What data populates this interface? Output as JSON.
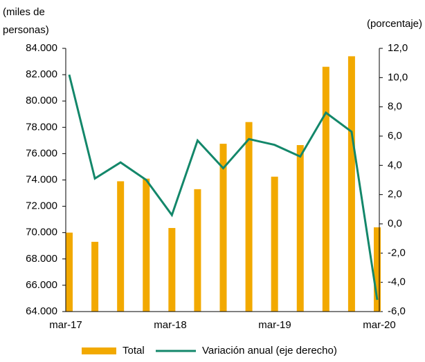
{
  "chart_data": {
    "type": "bar_line",
    "y_label": [
      "(miles de",
      "personas)"
    ],
    "y2_label": "(porcentaje)",
    "categories": [
      "mar-17",
      null,
      null,
      null,
      "mar-18",
      null,
      null,
      null,
      "mar-19",
      null,
      null,
      null,
      "mar-20"
    ],
    "series": [
      {
        "name": "Total",
        "type": "bar",
        "color": "#f2a900",
        "values": [
          70000,
          69300,
          73900,
          74100,
          70350,
          73300,
          76750,
          78400,
          74250,
          76650,
          82600,
          83400,
          70400
        ]
      },
      {
        "name": "Variación anual (eje derecho)",
        "type": "line",
        "axis": "y2",
        "color": "#13876a",
        "values": [
          10.2,
          3.1,
          4.2,
          3.0,
          0.6,
          5.7,
          3.8,
          5.8,
          5.4,
          4.6,
          7.6,
          6.3,
          -5.2
        ]
      }
    ],
    "ylim": [
      64000,
      84000
    ],
    "yticks": [
      {
        "value": 64000,
        "label": "64.000"
      },
      {
        "value": 66000,
        "label": "66.000"
      },
      {
        "value": 68000,
        "label": "68.000"
      },
      {
        "value": 70000,
        "label": "70.000"
      },
      {
        "value": 72000,
        "label": "72.000"
      },
      {
        "value": 74000,
        "label": "74.000"
      },
      {
        "value": 76000,
        "label": "76.000"
      },
      {
        "value": 78000,
        "label": "78.000"
      },
      {
        "value": 80000,
        "label": "80.000"
      },
      {
        "value": 82000,
        "label": "82.000"
      },
      {
        "value": 84000,
        "label": "84.000"
      }
    ],
    "y2lim": [
      -6,
      12
    ],
    "y2ticks": [
      {
        "value": -6,
        "label": "-6,0"
      },
      {
        "value": -4,
        "label": "-4,0"
      },
      {
        "value": -2,
        "label": "-2,0"
      },
      {
        "value": 0,
        "label": "0,0"
      },
      {
        "value": 2,
        "label": "2,0"
      },
      {
        "value": 4,
        "label": "4,0"
      },
      {
        "value": 6,
        "label": "6,0"
      },
      {
        "value": 8,
        "label": "8,0"
      },
      {
        "value": 10,
        "label": "10,0"
      },
      {
        "value": 12,
        "label": "12,0"
      }
    ]
  }
}
